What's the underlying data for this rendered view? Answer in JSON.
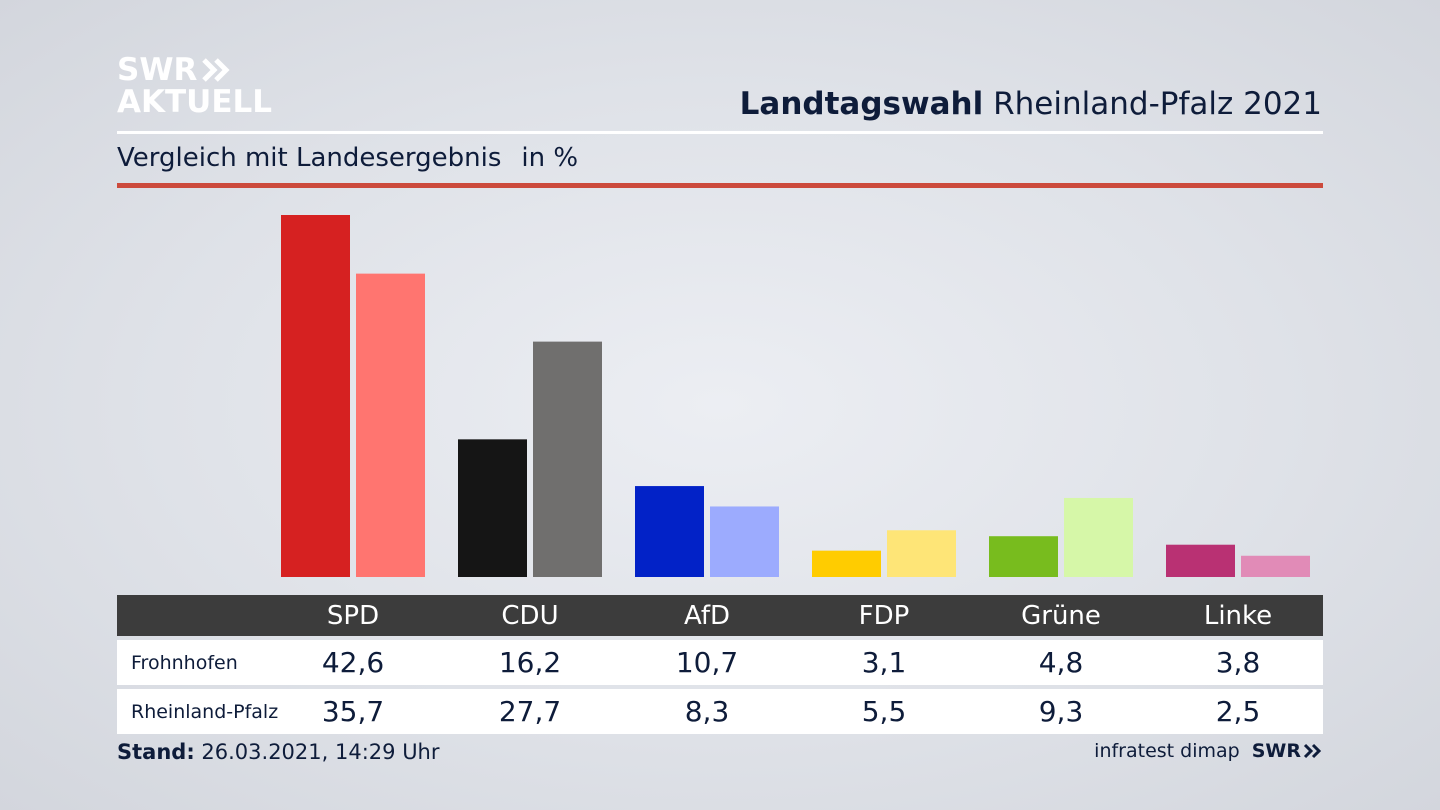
{
  "logo": {
    "line1": "SWR",
    "line2": "AKTUELL",
    "icon": "double-chevron-right-icon"
  },
  "header": {
    "title_bold": "Landtagswahl",
    "title_rest": "Rheinland-Pfalz 2021"
  },
  "subtitle": {
    "text": "Vergleich mit Landesergebnis",
    "unit": "in %"
  },
  "chart_data": {
    "type": "bar",
    "categories": [
      "SPD",
      "CDU",
      "AfD",
      "FDP",
      "Grüne",
      "Linke"
    ],
    "series": [
      {
        "name": "Frohnhofen",
        "values": [
          42.6,
          16.2,
          10.7,
          3.1,
          4.8,
          3.8
        ]
      },
      {
        "name": "Rheinland-Pfalz",
        "values": [
          35.7,
          27.7,
          8.3,
          5.5,
          9.3,
          2.5
        ]
      }
    ],
    "ylim": [
      0,
      42.6
    ],
    "grid": false,
    "colors": {
      "Frohnhofen": [
        "#d62121",
        "#151515",
        "#0222c7",
        "#ffcc00",
        "#78bc1e",
        "#b93173"
      ],
      "Rheinland-Pfalz": [
        "#ff7570",
        "#706f6e",
        "#9cabfe",
        "#fee577",
        "#d6f7a8",
        "#e18bb7"
      ]
    }
  },
  "table": {
    "labels": {
      "Frohnhofen": "Frohnhofen",
      "Rheinland-Pfalz": "Rheinland-Pfalz"
    },
    "rows": [
      {
        "label": "Frohnhofen",
        "values": [
          "42,6",
          "16,2",
          "10,7",
          "3,1",
          "4,8",
          "3,8"
        ]
      },
      {
        "label": "Rheinland-Pfalz",
        "values": [
          "35,7",
          "27,7",
          "8,3",
          "5,5",
          "9,3",
          "2,5"
        ]
      }
    ]
  },
  "footer": {
    "stand_label": "Stand:",
    "stand_value": "26.03.2021, 14:29 Uhr",
    "source": "infratest dimap",
    "brand": "SWR"
  }
}
